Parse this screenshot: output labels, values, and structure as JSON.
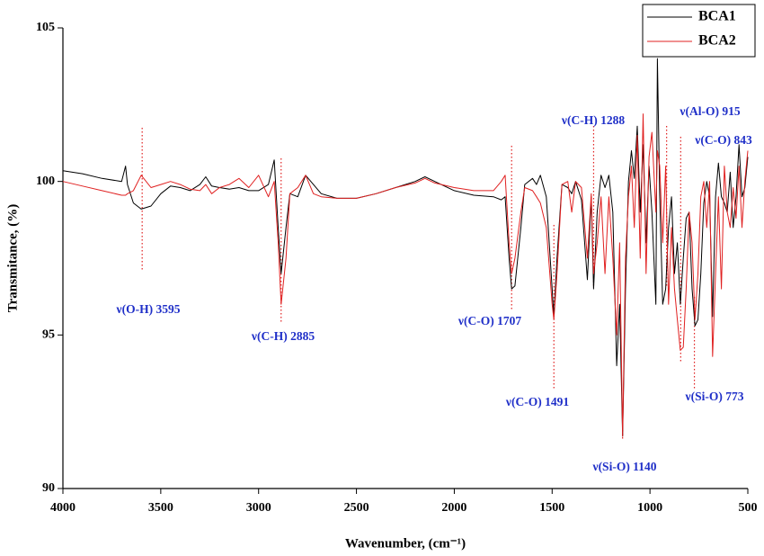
{
  "chart_data": {
    "type": "line",
    "xlabel": "Wavenumber, (cm⁻¹)",
    "ylabel": "Transmitance, (%)",
    "xlim": [
      4000,
      500
    ],
    "ylim": [
      90,
      105
    ],
    "xticks": [
      4000,
      3500,
      3000,
      2500,
      2000,
      1500,
      1000,
      500
    ],
    "yticks": [
      90,
      95,
      100,
      105
    ],
    "legend": "top-right",
    "x": [
      4000,
      3900,
      3800,
      3700,
      3680,
      3670,
      3640,
      3600,
      3550,
      3500,
      3450,
      3400,
      3350,
      3300,
      3270,
      3240,
      3200,
      3150,
      3100,
      3050,
      3000,
      2950,
      2920,
      2900,
      2885,
      2860,
      2840,
      2800,
      2760,
      2720,
      2680,
      2600,
      2500,
      2400,
      2300,
      2200,
      2150,
      2100,
      2000,
      1900,
      1800,
      1760,
      1740,
      1720,
      1707,
      1690,
      1660,
      1640,
      1600,
      1580,
      1560,
      1530,
      1500,
      1491,
      1475,
      1450,
      1420,
      1400,
      1380,
      1350,
      1320,
      1300,
      1288,
      1270,
      1250,
      1230,
      1210,
      1190,
      1170,
      1155,
      1140,
      1125,
      1110,
      1095,
      1080,
      1065,
      1050,
      1035,
      1020,
      1005,
      990,
      970,
      962,
      950,
      935,
      920,
      905,
      890,
      875,
      860,
      845,
      830,
      815,
      800,
      785,
      770,
      755,
      740,
      725,
      710,
      695,
      680,
      665,
      650,
      635,
      620,
      605,
      590,
      575,
      560,
      545,
      530,
      515,
      500
    ],
    "series": [
      {
        "name": "BCA1",
        "color": "#000000",
        "values": [
          100.35,
          100.25,
          100.1,
          100.0,
          100.5,
          99.9,
          99.3,
          99.1,
          99.2,
          99.6,
          99.85,
          99.8,
          99.7,
          99.9,
          100.15,
          99.85,
          99.8,
          99.75,
          99.8,
          99.7,
          99.7,
          99.9,
          100.7,
          98.5,
          97.0,
          98.5,
          99.6,
          99.5,
          100.2,
          99.9,
          99.6,
          99.45,
          99.45,
          99.6,
          99.8,
          100.0,
          100.15,
          100.0,
          99.7,
          99.55,
          99.5,
          99.4,
          99.5,
          97.5,
          96.5,
          96.6,
          98.5,
          99.9,
          100.1,
          99.9,
          100.2,
          99.5,
          96.5,
          95.6,
          97.5,
          99.9,
          99.8,
          99.6,
          100.0,
          99.4,
          96.8,
          99.5,
          96.5,
          99.0,
          100.2,
          99.8,
          100.2,
          99.0,
          94.0,
          96.0,
          91.7,
          96.5,
          100.0,
          101.0,
          100.1,
          101.8,
          99.0,
          101.2,
          98.0,
          100.5,
          99.0,
          96.0,
          104.0,
          99.5,
          96.0,
          96.5,
          98.5,
          99.5,
          97.0,
          98.0,
          96.0,
          97.5,
          98.8,
          99.0,
          96.5,
          95.3,
          95.5,
          97.0,
          99.3,
          100.0,
          99.5,
          95.6,
          99.5,
          100.6,
          99.5,
          99.3,
          99.0,
          100.3,
          98.5,
          99.5,
          101.2,
          99.5,
          99.8,
          100.8
        ]
      },
      {
        "name": "BCA2",
        "color": "#e02020",
        "values": [
          100.0,
          99.85,
          99.7,
          99.55,
          99.55,
          99.6,
          99.7,
          100.2,
          99.8,
          99.9,
          100.0,
          99.9,
          99.75,
          99.7,
          99.9,
          99.6,
          99.8,
          99.9,
          100.1,
          99.8,
          100.2,
          99.5,
          100.0,
          98.0,
          96.0,
          97.5,
          99.6,
          99.8,
          100.2,
          99.6,
          99.5,
          99.45,
          99.45,
          99.6,
          99.8,
          99.95,
          100.1,
          99.95,
          99.8,
          99.7,
          99.7,
          100.0,
          100.2,
          98.0,
          97.0,
          97.5,
          99.0,
          99.8,
          99.7,
          99.5,
          99.3,
          98.5,
          96.0,
          95.5,
          97.0,
          99.9,
          100.0,
          99.0,
          100.0,
          99.8,
          97.5,
          99.6,
          97.0,
          98.0,
          99.5,
          97.0,
          99.5,
          97.5,
          95.0,
          98.0,
          91.7,
          97.5,
          99.5,
          100.5,
          98.5,
          101.5,
          97.5,
          102.2,
          97.0,
          100.8,
          101.6,
          99.0,
          101.0,
          100.5,
          98.0,
          100.5,
          96.0,
          98.5,
          96.5,
          95.5,
          94.5,
          94.6,
          96.5,
          99.0,
          98.0,
          95.5,
          97.0,
          99.5,
          100.0,
          98.5,
          100.0,
          94.3,
          97.0,
          99.5,
          96.5,
          100.5,
          99.0,
          98.5,
          99.8,
          98.8,
          100.5,
          98.5,
          100.0,
          101.0
        ]
      }
    ],
    "annotations": [
      {
        "text": "ν(O-H) 3595",
        "x": 3595
      },
      {
        "text": "ν(C-H) 2885",
        "x": 2885
      },
      {
        "text": "ν(C-O) 1707",
        "x": 1707
      },
      {
        "text": "ν(C-O) 1491",
        "x": 1491
      },
      {
        "text": "ν(C-H) 1288",
        "x": 1288
      },
      {
        "text": "ν(Si-O) 1140",
        "x": 1140
      },
      {
        "text": "ν(Al-O) 915",
        "x": 915
      },
      {
        "text": "ν(C-O) 843",
        "x": 843
      },
      {
        "text": "ν(Si-O) 773",
        "x": 773
      }
    ]
  }
}
